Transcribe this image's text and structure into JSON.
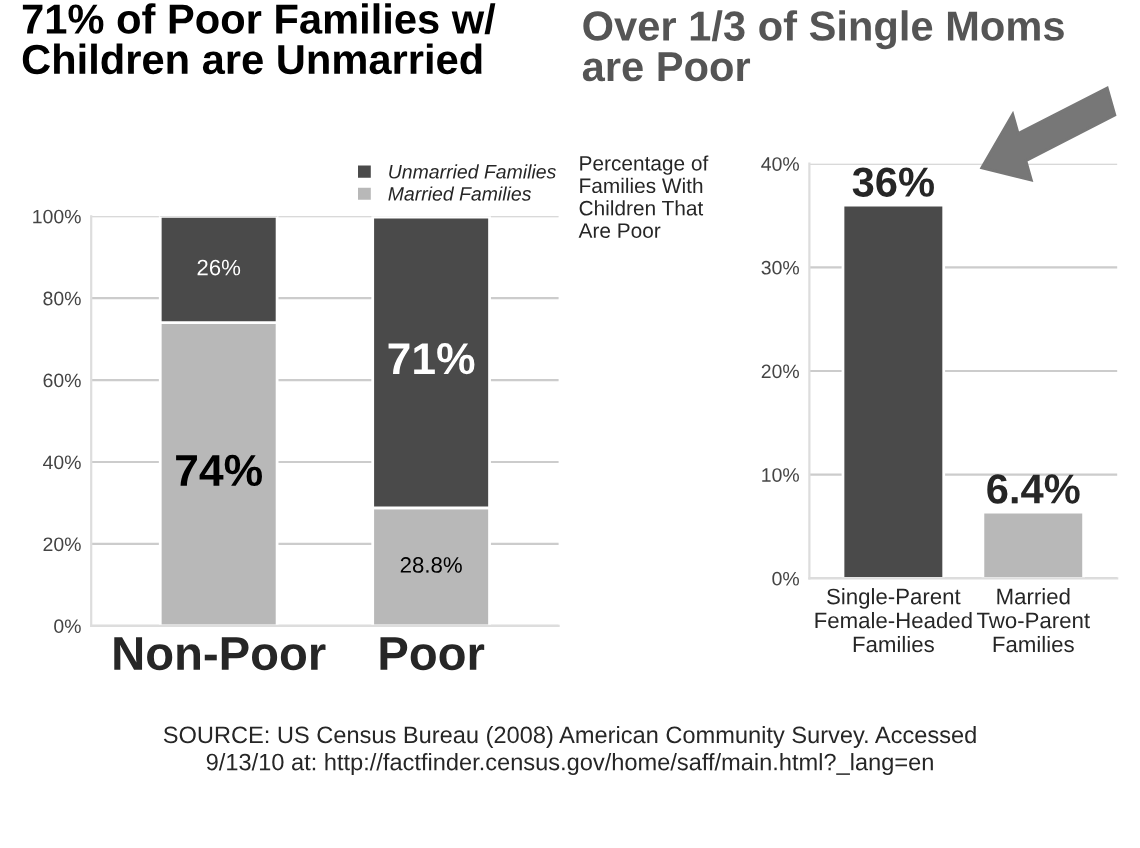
{
  "chart_data": [
    {
      "type": "bar",
      "title": "71% of Poor Families w/\nChildren are Unmarried",
      "categories": [
        "Non-Poor",
        "Poor"
      ],
      "stacked": true,
      "series": [
        {
          "name": "Married Families",
          "color": "#b8b8b8",
          "values": [
            74,
            28.8
          ],
          "value_labels": [
            "74%",
            "28.8%"
          ]
        },
        {
          "name": "Unmarried Families",
          "color": "#4a4a4a",
          "values": [
            26,
            71
          ],
          "value_labels": [
            "26%",
            "71%"
          ]
        }
      ],
      "ylim": [
        0,
        100
      ],
      "yticks": [
        {
          "value": 0,
          "label": "0%"
        },
        {
          "value": 20,
          "label": "20%"
        },
        {
          "value": 40,
          "label": "40%"
        },
        {
          "value": 60,
          "label": "60%"
        },
        {
          "value": 80,
          "label": "80%"
        },
        {
          "value": 100,
          "label": "100%"
        }
      ],
      "grid": "y",
      "legend": "top right"
    },
    {
      "type": "bar",
      "title": "Over 1/3 of Single Moms\nare Poor",
      "ylabel": "Percentage of\nFamilies With\nChildren That\nAre Poor",
      "categories": [
        "Single-Parent\nFemale-Headed\nFamilies",
        "Married\nTwo-Parent\nFamilies"
      ],
      "values": [
        36,
        6.4
      ],
      "colors": [
        "#4a4a4a",
        "#b8b8b8"
      ],
      "value_labels": [
        "36%",
        "6.4%"
      ],
      "ylim": [
        0,
        40
      ],
      "yticks": [
        {
          "value": 0,
          "label": "0%"
        },
        {
          "value": 10,
          "label": "10%"
        },
        {
          "value": 20,
          "label": "20%"
        },
        {
          "value": 30,
          "label": "30%"
        },
        {
          "value": 40,
          "label": "40%"
        }
      ],
      "grid": "y",
      "annotations": [
        "SOURCE: US Census Bureau (2008) American Community Survey. Accessed\n9/13/10 at: http://factfinder.census.gov/home/saff/main.html?_lang=en"
      ]
    }
  ]
}
